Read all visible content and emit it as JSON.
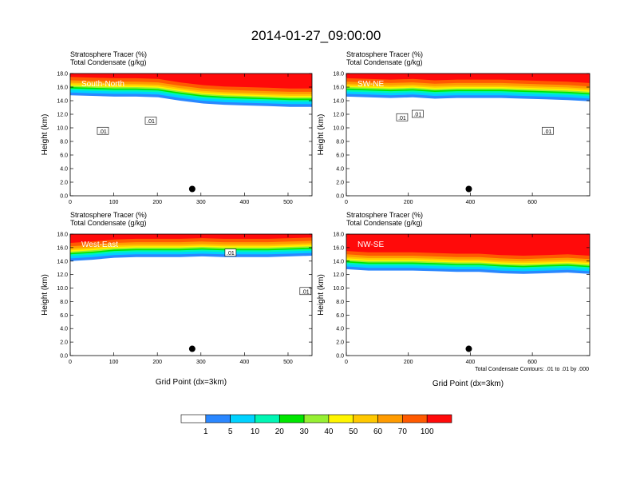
{
  "figure": {
    "title": "2014-01-27_09:00:00",
    "note": "Total Condensate Contours: .01 to .01 by .000"
  },
  "colorbar": {
    "colors": [
      "#ffffff",
      "#2a87ff",
      "#00d2ff",
      "#00f6b4",
      "#00e600",
      "#96f032",
      "#fff500",
      "#ffc800",
      "#ff9b00",
      "#ff5a00",
      "#ff0a0a"
    ],
    "labels": [
      "1",
      "5",
      "10",
      "20",
      "30",
      "40",
      "50",
      "60",
      "70",
      "100"
    ]
  },
  "chart_data": [
    {
      "type": "heatmap",
      "region": "South-North",
      "title_line1": "Stratosphere Tracer   (%)",
      "title_line2": "Total Condensate   (g/kg)",
      "xlabel": "",
      "ylabel": "Height (km)",
      "xlim": [
        0,
        555
      ],
      "ylim": [
        0,
        18
      ],
      "xticks": [
        0,
        100,
        200,
        300,
        400,
        500
      ],
      "yticks": [
        "0.0",
        "2.0",
        "4.0",
        "6.0",
        "8.0",
        "10.0",
        "12.0",
        "14.0",
        "16.0",
        "18.0"
      ],
      "tracer_base_km": [
        15.2,
        15.1,
        15.0,
        15.0,
        14.9,
        14.4,
        14.0,
        13.8,
        13.7,
        13.6,
        13.5,
        13.5
      ],
      "marker": {
        "x": 280,
        "y": 1.0
      },
      "contour_labels": [
        {
          "text": ".01",
          "x": 75,
          "y": 9.5
        },
        {
          "text": ".01",
          "x": 185,
          "y": 11.0
        }
      ]
    },
    {
      "type": "heatmap",
      "region": "SW-NE",
      "title_line1": "Stratosphere Tracer   (%)",
      "title_line2": "Total Condensate   (g/kg)",
      "xlabel": "",
      "ylabel": "Height (km)",
      "xlim": [
        0,
        785
      ],
      "ylim": [
        0,
        18
      ],
      "xticks": [
        0,
        200,
        400,
        600
      ],
      "yticks": [
        "0.0",
        "2.0",
        "4.0",
        "6.0",
        "8.0",
        "10.0",
        "12.0",
        "14.0",
        "16.0",
        "18.0"
      ],
      "tracer_base_km": [
        15.0,
        14.9,
        14.8,
        14.9,
        14.7,
        14.8,
        14.8,
        14.8,
        14.7,
        14.6,
        14.5,
        14.3
      ],
      "marker": {
        "x": 395,
        "y": 1.0
      },
      "contour_labels": [
        {
          "text": ".01",
          "x": 180,
          "y": 11.5
        },
        {
          "text": ".01",
          "x": 230,
          "y": 12.0
        },
        {
          "text": ".01",
          "x": 650,
          "y": 9.5
        }
      ]
    },
    {
      "type": "heatmap",
      "region": "West-East",
      "title_line1": "Stratosphere Tracer   (%)",
      "title_line2": "Total Condensate   (g/kg)",
      "xlabel": "Grid Point (dx=3km)",
      "ylabel": "Height (km)",
      "xlim": [
        0,
        555
      ],
      "ylim": [
        0,
        18
      ],
      "xticks": [
        0,
        100,
        200,
        300,
        400,
        500
      ],
      "yticks": [
        "0.0",
        "2.0",
        "4.0",
        "6.0",
        "8.0",
        "10.0",
        "12.0",
        "14.0",
        "16.0",
        "18.0"
      ],
      "tracer_base_km": [
        14.4,
        14.6,
        14.9,
        15.0,
        15.0,
        15.0,
        15.1,
        15.0,
        15.0,
        15.0,
        15.1,
        15.2
      ],
      "marker": {
        "x": 280,
        "y": 1.0
      },
      "contour_labels": [
        {
          "text": ".01",
          "x": 368,
          "y": 15.2
        },
        {
          "text": ".01",
          "x": 540,
          "y": 9.5
        }
      ]
    },
    {
      "type": "heatmap",
      "region": "NW-SE",
      "title_line1": "Stratosphere Tracer   (%)",
      "title_line2": "Total Condensate   (g/kg)",
      "xlabel": "Grid Point (dx=3km)",
      "ylabel": "Height (km)",
      "xlim": [
        0,
        785
      ],
      "ylim": [
        0,
        18
      ],
      "xticks": [
        0,
        200,
        400,
        600
      ],
      "yticks": [
        "0.0",
        "2.0",
        "4.0",
        "6.0",
        "8.0",
        "10.0",
        "12.0",
        "14.0",
        "16.0",
        "18.0"
      ],
      "tracer_base_km": [
        13.2,
        13.0,
        13.0,
        13.0,
        12.9,
        12.8,
        12.8,
        12.6,
        12.5,
        12.6,
        12.7,
        12.5
      ],
      "marker": {
        "x": 395,
        "y": 1.0
      },
      "contour_labels": []
    }
  ]
}
